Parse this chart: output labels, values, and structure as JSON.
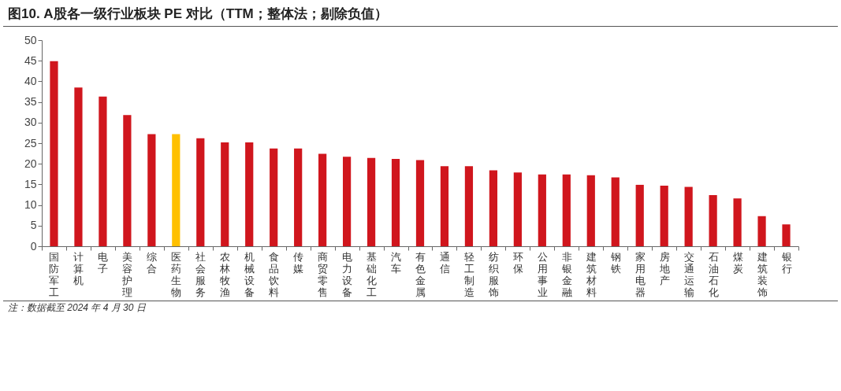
{
  "chart_data": {
    "type": "bar",
    "title": "图10. A股各一级行业板块 PE 对比（TTM；整体法；剔除负值）",
    "categories": [
      "国防军工",
      "计算机",
      "电子",
      "美容护理",
      "综合",
      "医药生物",
      "社会服务",
      "农林牧渔",
      "机械设备",
      "食品饮料",
      "传媒",
      "商贸零售",
      "电力设备",
      "基础化工",
      "汽车",
      "有色金属",
      "通信",
      "轻工制造",
      "纺织服饰",
      "环保",
      "公用事业",
      "非银金融",
      "建筑材料",
      "钢铁",
      "家用电器",
      "房地产",
      "交通运输",
      "石油石化",
      "煤炭",
      "建筑装饰",
      "银行"
    ],
    "values": [
      44.9,
      38.5,
      36.3,
      31.8,
      27.2,
      27.2,
      26.2,
      25.2,
      25.2,
      23.7,
      23.7,
      22.4,
      21.7,
      21.4,
      21.2,
      20.9,
      19.4,
      19.4,
      18.4,
      17.9,
      17.4,
      17.4,
      17.2,
      16.7,
      14.9,
      14.7,
      14.4,
      12.4,
      11.6,
      7.3,
      5.3
    ],
    "colors": [
      "#d0161d",
      "#d0161d",
      "#d0161d",
      "#d0161d",
      "#d0161d",
      "#ffc000",
      "#d0161d",
      "#d0161d",
      "#d0161d",
      "#d0161d",
      "#d0161d",
      "#d0161d",
      "#d0161d",
      "#d0161d",
      "#d0161d",
      "#d0161d",
      "#d0161d",
      "#d0161d",
      "#d0161d",
      "#d0161d",
      "#d0161d",
      "#d0161d",
      "#d0161d",
      "#d0161d",
      "#d0161d",
      "#d0161d",
      "#d0161d",
      "#d0161d",
      "#d0161d",
      "#d0161d",
      "#d0161d"
    ],
    "ylim": [
      0,
      50
    ],
    "yticks": [
      0,
      5,
      10,
      15,
      20,
      25,
      30,
      35,
      40,
      45,
      50
    ],
    "grid": false,
    "annotations": [
      "注：数据截至 2024 年 4 月 30 日"
    ]
  }
}
